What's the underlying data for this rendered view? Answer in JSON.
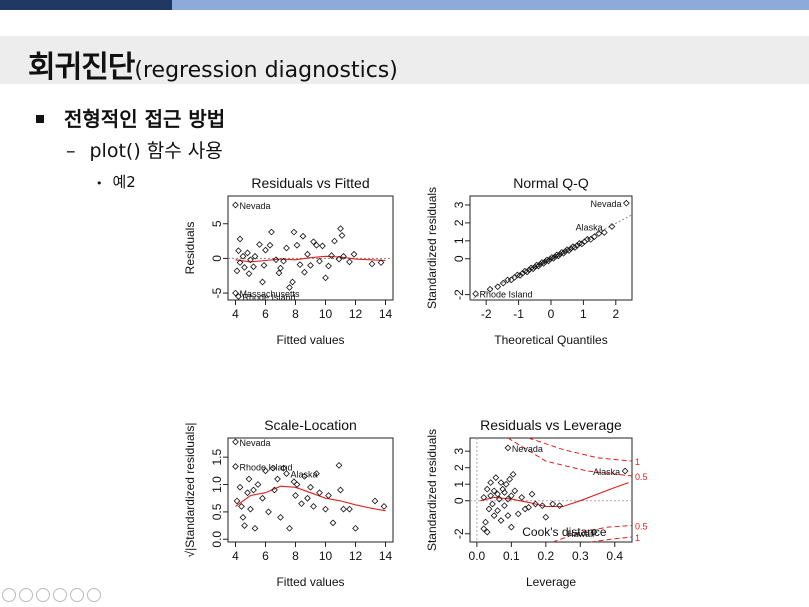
{
  "slide": {
    "title": "회귀진단",
    "title_suffix": "(regression diagnostics)",
    "bullet1": "전형적인 접근 방법",
    "bullet2_marker": "–",
    "bullet2": "plot() 함수 사용",
    "bullet3_marker": "•",
    "bullet3": "예2",
    "footer_icons": [
      "prev-icon",
      "back-icon",
      "pen-icon",
      "slides-icon",
      "zoom-icon",
      "more-icon"
    ]
  },
  "chart_data": [
    {
      "type": "scatter",
      "title": "Residuals vs Fitted",
      "xlabel": "Fitted values",
      "ylabel": "Residuals",
      "xlim": [
        3.5,
        14.5
      ],
      "ylim": [
        -6,
        9
      ],
      "xticks": [
        "4",
        "6",
        "8",
        "10",
        "12",
        "14"
      ],
      "yticks": [
        "-5",
        "0",
        "5"
      ],
      "reference": "dotted horizontal line at 0",
      "smoother": "red line",
      "points": [
        [
          4,
          7.7
        ],
        [
          4.1,
          -1.8
        ],
        [
          4.2,
          1.1
        ],
        [
          4.3,
          -0.6
        ],
        [
          4.3,
          2.8
        ],
        [
          4.5,
          0.3
        ],
        [
          4.6,
          -1.3
        ],
        [
          4.8,
          0.8
        ],
        [
          4.9,
          -2.2
        ],
        [
          5.0,
          -0.2
        ],
        [
          5.2,
          -1.2
        ],
        [
          5.3,
          0.3
        ],
        [
          5.6,
          2.0
        ],
        [
          5.8,
          -3.4
        ],
        [
          5.9,
          -1.0
        ],
        [
          6.0,
          1.2
        ],
        [
          6.3,
          1.9
        ],
        [
          6.4,
          3.8
        ],
        [
          6.7,
          -0.2
        ],
        [
          6.9,
          -2.1
        ],
        [
          7.0,
          -1.4
        ],
        [
          7.2,
          -0.4
        ],
        [
          7.4,
          1.5
        ],
        [
          7.6,
          -4.2
        ],
        [
          7.8,
          -3.4
        ],
        [
          7.9,
          3.8
        ],
        [
          8.1,
          1.9
        ],
        [
          8.3,
          -0.9
        ],
        [
          8.5,
          3.2
        ],
        [
          8.6,
          -2.0
        ],
        [
          8.8,
          0.6
        ],
        [
          9.0,
          -1.0
        ],
        [
          9.2,
          2.4
        ],
        [
          9.4,
          1.9
        ],
        [
          9.6,
          -0.4
        ],
        [
          9.8,
          1.8
        ],
        [
          10.0,
          -2.8
        ],
        [
          10.2,
          -1.1
        ],
        [
          10.4,
          0.4
        ],
        [
          10.6,
          2.5
        ],
        [
          10.9,
          -0.1
        ],
        [
          11.0,
          4.3
        ],
        [
          11.1,
          3.3
        ],
        [
          11.2,
          0.3
        ],
        [
          11.6,
          -0.5
        ],
        [
          11.9,
          0.6
        ],
        [
          13.1,
          -0.8
        ],
        [
          13.7,
          -0.6
        ],
        [
          4.0,
          -5.0
        ],
        [
          4.2,
          -5.5
        ]
      ],
      "smooth": [
        [
          4,
          -0.2
        ],
        [
          5,
          -0.5
        ],
        [
          6,
          -0.3
        ],
        [
          7,
          -0.1
        ],
        [
          8,
          -0.2
        ],
        [
          9,
          0.1
        ],
        [
          10,
          0.3
        ],
        [
          11,
          0.2
        ],
        [
          12,
          -0.1
        ],
        [
          13,
          -0.2
        ],
        [
          14,
          -0.3
        ]
      ],
      "labels": [
        {
          "text": "Nevada",
          "x": 4.0,
          "y": 7.7
        },
        {
          "text": "Massachusetts",
          "x": 4.0,
          "y": -5.0
        },
        {
          "text": "Rhode Island",
          "x": 4.2,
          "y": -5.5
        }
      ]
    },
    {
      "type": "scatter",
      "title": "Normal Q-Q",
      "xlabel": "Theoretical Quantiles",
      "ylabel": "Standardized residuals",
      "xlim": [
        -2.5,
        2.5
      ],
      "ylim": [
        -2.3,
        3.5
      ],
      "xticks": [
        "-2",
        "-1",
        "0",
        "1",
        "2"
      ],
      "yticks": [
        "-2",
        "0",
        "1",
        "2",
        "3"
      ],
      "reference": "dotted diagonal line",
      "labels": [
        {
          "text": "Nevada",
          "x": 2.33,
          "y": 3.1
        },
        {
          "text": "Alaska",
          "x": 1.75,
          "y": 1.8
        },
        {
          "text": "Rhode Island",
          "x": -2.33,
          "y": -1.95
        }
      ]
    },
    {
      "type": "scatter",
      "title": "Scale-Location",
      "xlabel": "Fitted values",
      "ylabel": "√|Standardized residuals|",
      "xlim": [
        3.5,
        14.5
      ],
      "ylim": [
        -0.05,
        1.85
      ],
      "xticks": [
        "4",
        "6",
        "8",
        "10",
        "12",
        "14"
      ],
      "yticks": [
        "0.0",
        "0.5",
        "1.0",
        "1.5"
      ],
      "smoother": "red line",
      "points": [
        [
          4,
          1.78
        ],
        [
          4.0,
          1.33
        ],
        [
          4.1,
          0.7
        ],
        [
          4.3,
          0.95
        ],
        [
          4.4,
          0.6
        ],
        [
          4.5,
          0.4
        ],
        [
          4.6,
          0.25
        ],
        [
          4.8,
          0.85
        ],
        [
          4.9,
          1.1
        ],
        [
          5.0,
          0.55
        ],
        [
          5.2,
          0.9
        ],
        [
          5.3,
          0.2
        ],
        [
          5.5,
          1.0
        ],
        [
          5.8,
          0.75
        ],
        [
          6.0,
          1.25
        ],
        [
          6.2,
          0.5
        ],
        [
          6.5,
          1.3
        ],
        [
          6.6,
          0.9
        ],
        [
          6.8,
          1.1
        ],
        [
          7.0,
          0.4
        ],
        [
          7.2,
          1.3
        ],
        [
          7.4,
          1.2
        ],
        [
          7.6,
          0.2
        ],
        [
          7.9,
          1.05
        ],
        [
          8.0,
          0.8
        ],
        [
          8.1,
          1.0
        ],
        [
          8.4,
          0.65
        ],
        [
          8.6,
          1.15
        ],
        [
          8.8,
          0.75
        ],
        [
          9.0,
          0.95
        ],
        [
          9.2,
          0.6
        ],
        [
          9.4,
          1.2
        ],
        [
          9.6,
          0.85
        ],
        [
          10.0,
          0.55
        ],
        [
          10.2,
          0.8
        ],
        [
          10.5,
          0.3
        ],
        [
          10.9,
          1.35
        ],
        [
          11.0,
          0.9
        ],
        [
          11.2,
          0.55
        ],
        [
          11.6,
          0.55
        ],
        [
          12.0,
          0.2
        ],
        [
          13.3,
          0.7
        ],
        [
          13.9,
          0.6
        ]
      ],
      "smooth": [
        [
          4,
          0.6
        ],
        [
          5,
          0.8
        ],
        [
          6,
          0.85
        ],
        [
          7,
          0.97
        ],
        [
          8,
          0.95
        ],
        [
          9,
          0.85
        ],
        [
          10,
          0.75
        ],
        [
          11,
          0.7
        ],
        [
          12,
          0.63
        ],
        [
          13,
          0.57
        ],
        [
          14,
          0.52
        ]
      ],
      "labels": [
        {
          "text": "Nevada",
          "x": 4.0,
          "y": 1.78
        },
        {
          "text": "Rhode Island",
          "x": 4.0,
          "y": 1.33
        },
        {
          "text": "Alaska",
          "x": 7.4,
          "y": 1.2
        }
      ]
    },
    {
      "type": "scatter",
      "title": "Residuals vs Leverage",
      "xlabel": "Leverage",
      "ylabel": "Standardized residuals",
      "xlim": [
        -0.02,
        0.45
      ],
      "ylim": [
        -2.5,
        3.8
      ],
      "xticks": [
        "0.0",
        "0.1",
        "0.2",
        "0.3",
        "0.4"
      ],
      "yticks": [
        "-2",
        "0",
        "1",
        "2",
        "3"
      ],
      "smoother": "red line",
      "points": [
        [
          0.09,
          3.2
        ],
        [
          0.43,
          1.8
        ],
        [
          0.02,
          0.2
        ],
        [
          0.025,
          -1.3
        ],
        [
          0.03,
          0.7
        ],
        [
          0.035,
          -0.5
        ],
        [
          0.04,
          1.1
        ],
        [
          0.04,
          0.3
        ],
        [
          0.045,
          -0.2
        ],
        [
          0.05,
          0.6
        ],
        [
          0.05,
          -0.9
        ],
        [
          0.055,
          1.4
        ],
        [
          0.06,
          0.4
        ],
        [
          0.06,
          -0.6
        ],
        [
          0.065,
          0.1
        ],
        [
          0.07,
          1.1
        ],
        [
          0.07,
          -1.2
        ],
        [
          0.075,
          0.7
        ],
        [
          0.08,
          -0.3
        ],
        [
          0.08,
          0.5
        ],
        [
          0.085,
          1.0
        ],
        [
          0.09,
          0.1
        ],
        [
          0.09,
          -0.9
        ],
        [
          0.095,
          1.3
        ],
        [
          0.1,
          0.3
        ],
        [
          0.1,
          -1.6
        ],
        [
          0.105,
          1.6
        ],
        [
          0.11,
          0.6
        ],
        [
          0.12,
          -0.8
        ],
        [
          0.13,
          0.2
        ],
        [
          0.14,
          -0.5
        ],
        [
          0.15,
          -0.4
        ],
        [
          0.16,
          0.4
        ],
        [
          0.17,
          -0.2
        ],
        [
          0.19,
          -0.3
        ],
        [
          0.2,
          -1.0
        ],
        [
          0.22,
          -0.2
        ],
        [
          0.24,
          -0.3
        ],
        [
          0.34,
          -1.9
        ],
        [
          0.03,
          -1.9
        ],
        [
          0.02,
          -1.7
        ]
      ],
      "smooth": [
        [
          0.01,
          0.0
        ],
        [
          0.05,
          0.2
        ],
        [
          0.1,
          0.1
        ],
        [
          0.15,
          -0.1
        ],
        [
          0.2,
          -0.35
        ],
        [
          0.25,
          -0.35
        ],
        [
          0.3,
          0.0
        ],
        [
          0.35,
          0.4
        ],
        [
          0.4,
          0.8
        ],
        [
          0.44,
          1.1
        ]
      ],
      "labels": [
        {
          "text": "Nevada",
          "x": 0.09,
          "y": 3.2
        },
        {
          "text": "Alaska",
          "x": 0.43,
          "y": 1.8
        },
        {
          "text": "Cook's distance",
          "x": 0.12,
          "y": -1.9
        },
        {
          "text": "Hawaii",
          "x": 0.25,
          "y": -1.95
        }
      ],
      "contour_labels": [
        "1",
        "0.5",
        "0.5",
        "1"
      ]
    }
  ]
}
